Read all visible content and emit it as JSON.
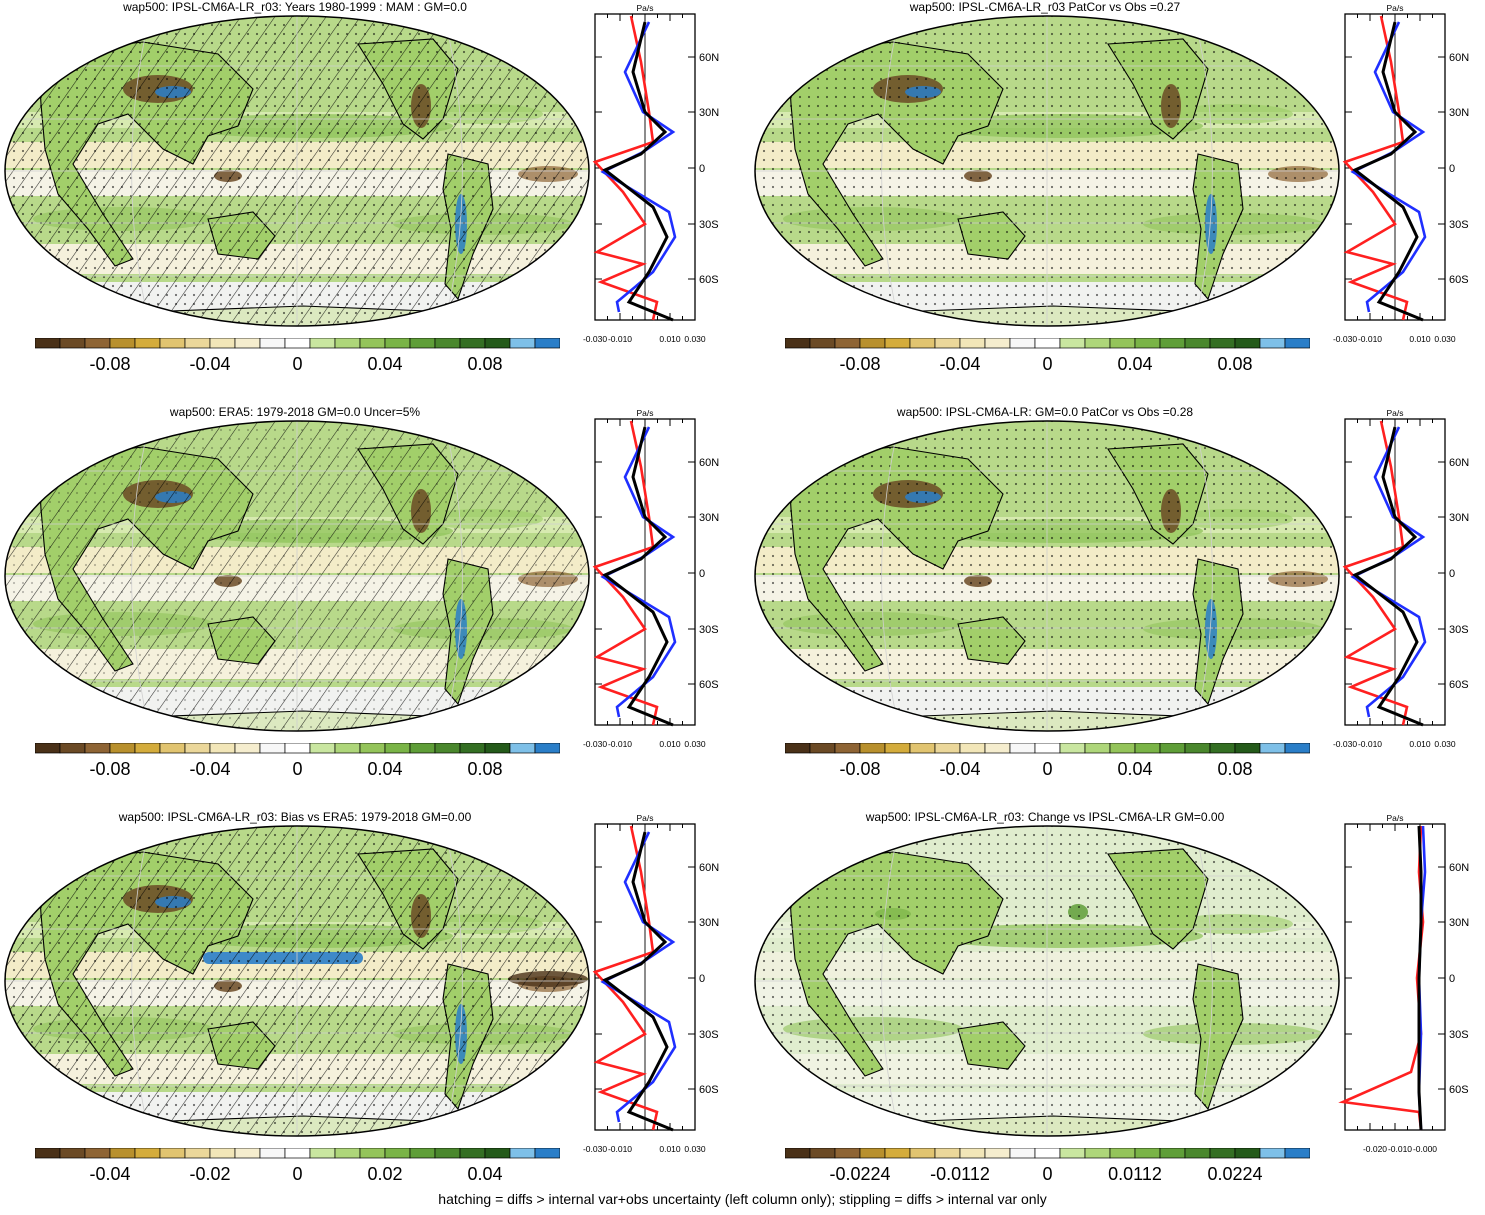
{
  "panels": [
    {
      "title": "wap500: IPSL-CM6A-LR_r03: Years 1980-1999 : MAM : GM=0.0",
      "hatched": true,
      "colorbar_labels": [
        "-0.08",
        "-0.04",
        "0",
        "0.04",
        "0.08"
      ],
      "profile_x_ticks": [
        "-0.030",
        "-0.010",
        "0.010",
        "0.030"
      ]
    },
    {
      "title": "wap500: IPSL-CM6A-LR_r03 PatCor vs Obs =0.27",
      "hatched": false,
      "colorbar_labels": [
        "-0.08",
        "-0.04",
        "0",
        "0.04",
        "0.08"
      ],
      "profile_x_ticks": [
        "-0.030",
        "-0.010",
        "0.010",
        "0.030"
      ]
    },
    {
      "title": "wap500: ERA5: 1979-2018 GM=0.0 Uncer=5%",
      "hatched": true,
      "colorbar_labels": [
        "-0.08",
        "-0.04",
        "0",
        "0.04",
        "0.08"
      ],
      "profile_x_ticks": [
        "-0.030",
        "-0.010",
        "0.010",
        "0.030"
      ]
    },
    {
      "title": "wap500: IPSL-CM6A-LR: GM=0.0 PatCor vs Obs =0.28",
      "hatched": false,
      "colorbar_labels": [
        "-0.08",
        "-0.04",
        "0",
        "0.04",
        "0.08"
      ],
      "profile_x_ticks": [
        "-0.030",
        "-0.010",
        "0.010",
        "0.030"
      ]
    },
    {
      "title": "wap500: IPSL-CM6A-LR_r03: Bias vs ERA5: 1979-2018 GM=0.00",
      "hatched": true,
      "colorbar_labels": [
        "-0.04",
        "-0.02",
        "0",
        "0.02",
        "0.04"
      ],
      "profile_x_ticks": [
        "-0.030",
        "-0.010",
        "0.010",
        "0.030"
      ]
    },
    {
      "title": "wap500: IPSL-CM6A-LR_r03: Change vs IPSL-CM6A-LR GM=0.00",
      "hatched": false,
      "colorbar_labels": [
        "-0.0224",
        "-0.0112",
        "0",
        "0.0112",
        "0.0224"
      ],
      "profile_x_ticks": [
        "-0.020",
        "-0.010",
        "-0.000"
      ]
    }
  ],
  "profile": {
    "unit": "Pa/s",
    "lat_labels": [
      "60N",
      "30N",
      "0",
      "30S",
      "60S"
    ]
  },
  "colorbar_colors": [
    "#4a3118",
    "#6b4a25",
    "#8e6434",
    "#b8902d",
    "#d4ac3c",
    "#e1c470",
    "#ebd79a",
    "#f2e6b8",
    "#f5edce",
    "#f7f7f7",
    "#ffffff",
    "#c9e6a0",
    "#aed67a",
    "#94c45a",
    "#7ab447",
    "#5f9e38",
    "#4a872d",
    "#346f23",
    "#245a1a",
    "#7ec0e8",
    "#2a7ec8"
  ],
  "footer": "hatching = diffs > internal var+obs uncertainty (left column only); stippling = diffs > internal var only"
}
